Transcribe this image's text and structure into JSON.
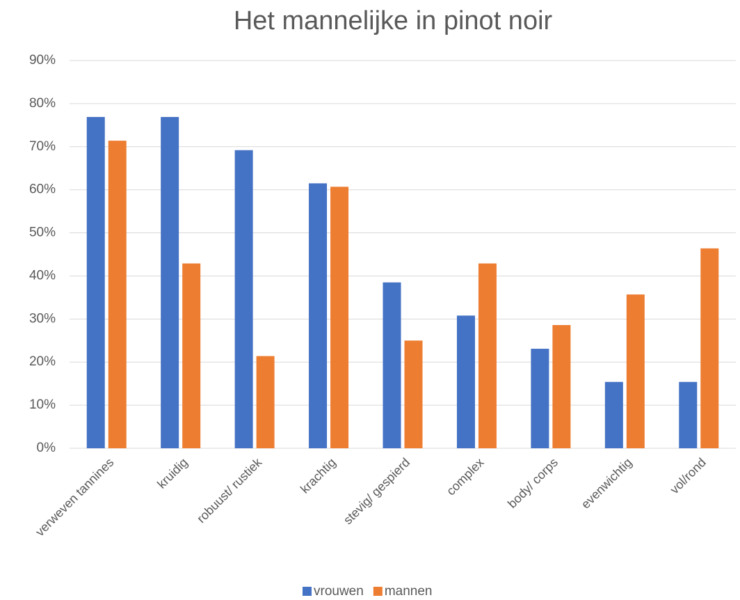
{
  "chart_data": {
    "type": "bar",
    "title": "Het mannelijke in pinot noir",
    "categories": [
      "verweven tannines",
      "kruidig",
      "robuust/ rustiek",
      "krachtig",
      "stevig/ gespierd",
      "complex",
      "body/ corps",
      "evenwichtig",
      "vol/rond"
    ],
    "series": [
      {
        "name": "vrouwen",
        "color": "#4472c4",
        "values": [
          76.9,
          76.9,
          69.2,
          61.5,
          38.5,
          30.8,
          23.1,
          15.4,
          15.4
        ]
      },
      {
        "name": "mannen",
        "color": "#ed7d31",
        "values": [
          71.4,
          42.9,
          21.4,
          60.7,
          25.0,
          42.9,
          28.6,
          35.7,
          46.4
        ]
      }
    ],
    "ylim": [
      0,
      90
    ],
    "yticks": [
      {
        "value": 0,
        "label": "0%"
      },
      {
        "value": 10,
        "label": "10%"
      },
      {
        "value": 20,
        "label": "20%"
      },
      {
        "value": 30,
        "label": "30%"
      },
      {
        "value": 40,
        "label": "40%"
      },
      {
        "value": 50,
        "label": "50%"
      },
      {
        "value": 60,
        "label": "60%"
      },
      {
        "value": 70,
        "label": "70%"
      },
      {
        "value": 80,
        "label": "80%"
      },
      {
        "value": 90,
        "label": "90%"
      }
    ],
    "grid": true,
    "legend": "bottom"
  }
}
